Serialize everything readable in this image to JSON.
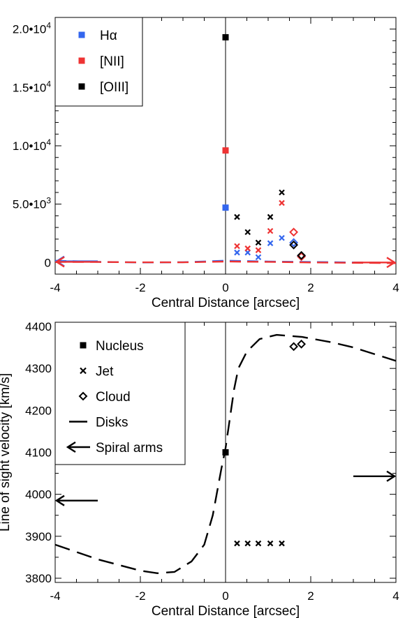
{
  "chart_data": [
    {
      "type": "scatter",
      "xlabel": "Central Distance [arcsec]",
      "ylabel": "",
      "xlim": [
        -4,
        4
      ],
      "ylim": [
        -1000,
        21000
      ],
      "x_ticks": [
        -4,
        -2,
        0,
        2,
        4
      ],
      "y_ticks": [
        0,
        5000,
        10000,
        15000,
        20000
      ],
      "x_tick_labels": [
        "-4",
        "-2",
        "0",
        "2",
        "4"
      ],
      "y_tick_labels": [
        "0",
        "5.0•103",
        "1.0•104",
        "1.5•104",
        "2.0•104"
      ],
      "y_tick_mantissa": [
        "",
        "5.0•10",
        "1.0•10",
        "1.5•10",
        "2.0•10"
      ],
      "y_tick_exponent": [
        "",
        "3",
        "4",
        "4",
        "4"
      ],
      "vline_x": 0,
      "legend": {
        "position": "top-left",
        "entries": [
          {
            "label": "Hα",
            "color": "#3366ee"
          },
          {
            "label": "[NII]",
            "color": "#ee3333"
          },
          {
            "label": "[OIII]",
            "color": "#000000"
          }
        ]
      },
      "series": [
        {
          "name": "Hα",
          "color": "#3366ee",
          "nucleus": [
            [
              0,
              4700
            ]
          ],
          "jet": [
            [
              0.27,
              850
            ],
            [
              0.52,
              850
            ],
            [
              0.77,
              450
            ],
            [
              1.05,
              1650
            ],
            [
              1.32,
              2100
            ]
          ],
          "cloud": [
            [
              1.6,
              1700
            ],
            [
              1.78,
              550
            ]
          ],
          "disk": [
            [
              -4,
              150
            ],
            [
              -3,
              50
            ],
            [
              -2,
              0
            ],
            [
              -1,
              20
            ],
            [
              0,
              150
            ],
            [
              1,
              80
            ],
            [
              2,
              40
            ],
            [
              3,
              0
            ],
            [
              4,
              -30
            ]
          ]
        },
        {
          "name": "[NII]",
          "color": "#ee3333",
          "nucleus": [
            [
              0,
              9600
            ]
          ],
          "jet": [
            [
              0.27,
              1400
            ],
            [
              0.52,
              1200
            ],
            [
              0.77,
              1050
            ],
            [
              1.05,
              2700
            ],
            [
              1.32,
              5100
            ]
          ],
          "cloud": [
            [
              1.6,
              2600
            ],
            [
              1.78,
              500
            ]
          ],
          "disk": [
            [
              -4,
              50
            ],
            [
              -3,
              40
            ],
            [
              -2,
              10
            ],
            [
              -1,
              10
            ],
            [
              0,
              80
            ],
            [
              1,
              50
            ],
            [
              2,
              0
            ],
            [
              3,
              -30
            ],
            [
              4,
              -60
            ]
          ]
        },
        {
          "name": "[OIII]",
          "color": "#000000",
          "nucleus": [
            [
              0,
              19300
            ]
          ],
          "jet": [
            [
              0.27,
              3900
            ],
            [
              0.52,
              2600
            ],
            [
              0.77,
              1700
            ],
            [
              1.05,
              3900
            ],
            [
              1.32,
              6000
            ]
          ],
          "cloud": [
            [
              1.6,
              1500
            ],
            [
              1.78,
              600
            ]
          ]
        }
      ],
      "spiral_arms": [
        {
          "color": "#3366ee",
          "tail": [
            -3,
            100
          ],
          "head": [
            -4,
            100
          ]
        },
        {
          "color": "#ee3333",
          "tail": [
            -3,
            50
          ],
          "head": [
            -4,
            50
          ]
        },
        {
          "color": "#ee3333",
          "tail": [
            3,
            0
          ],
          "head": [
            4,
            0
          ]
        }
      ]
    },
    {
      "type": "scatter",
      "xlabel": "Central Distance [arcsec]",
      "ylabel": "Line of sight velocity [km/s]",
      "xlim": [
        -4,
        4
      ],
      "ylim": [
        3790,
        4410
      ],
      "x_ticks": [
        -4,
        -2,
        0,
        2,
        4
      ],
      "y_ticks": [
        3800,
        3900,
        4000,
        4100,
        4200,
        4300,
        4400
      ],
      "x_tick_labels": [
        "-4",
        "-2",
        "0",
        "2",
        "4"
      ],
      "y_tick_labels": [
        "3800",
        "3900",
        "4000",
        "4100",
        "4200",
        "4300",
        "4400"
      ],
      "vline_x": 0,
      "legend": {
        "position": "top-left",
        "entries": [
          {
            "label": "Nucleus",
            "symbol": "square"
          },
          {
            "label": "Jet",
            "symbol": "cross"
          },
          {
            "label": "Cloud",
            "symbol": "diamond"
          },
          {
            "label": "Disks",
            "symbol": "line"
          },
          {
            "label": "Spiral arms",
            "symbol": "arrow"
          }
        ]
      },
      "nucleus": [
        [
          0,
          4100
        ]
      ],
      "jet": [
        [
          0.27,
          3883
        ],
        [
          0.52,
          3883
        ],
        [
          0.77,
          3883
        ],
        [
          1.05,
          3883
        ],
        [
          1.32,
          3883
        ]
      ],
      "cloud": [
        [
          1.6,
          4352
        ],
        [
          1.78,
          4358
        ]
      ],
      "disk": [
        [
          -4,
          3880
        ],
        [
          -3,
          3845
        ],
        [
          -2,
          3818
        ],
        [
          -1.6,
          3812
        ],
        [
          -1.2,
          3815
        ],
        [
          -0.8,
          3840
        ],
        [
          -0.5,
          3880
        ],
        [
          -0.3,
          3950
        ],
        [
          -0.1,
          4060
        ],
        [
          0,
          4110
        ],
        [
          0.1,
          4180
        ],
        [
          0.2,
          4250
        ],
        [
          0.3,
          4300
        ],
        [
          0.5,
          4340
        ],
        [
          0.8,
          4370
        ],
        [
          1.2,
          4380
        ],
        [
          1.8,
          4375
        ],
        [
          2.5,
          4362
        ],
        [
          3,
          4350
        ],
        [
          4,
          4318
        ]
      ],
      "spiral_arms": [
        {
          "tail": [
            -3,
            3985
          ],
          "head": [
            -4,
            3985
          ]
        },
        {
          "tail": [
            3,
            4043
          ],
          "head": [
            4,
            4043
          ]
        }
      ]
    }
  ]
}
